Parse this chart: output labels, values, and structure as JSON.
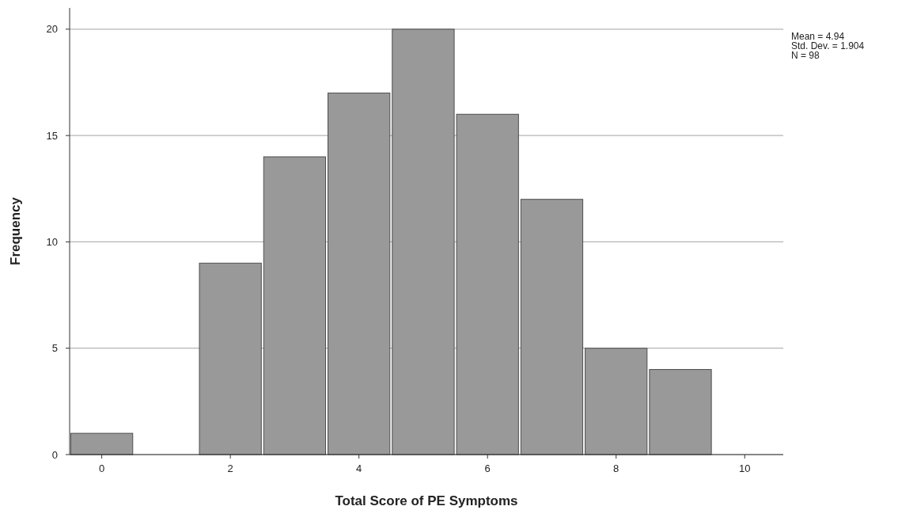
{
  "chart_data": {
    "type": "histogram",
    "xlabel": "Total Score of PE Symptoms",
    "ylabel": "Frequency",
    "bins": [
      -0.5,
      0.5,
      1.5,
      2.5,
      3.5,
      4.5,
      5.5,
      6.5,
      7.5,
      8.5,
      9.5
    ],
    "values": [
      1,
      0,
      9,
      14,
      17,
      20,
      16,
      12,
      5,
      4
    ],
    "color": "#999999",
    "xlim": [
      -0.5,
      10.6
    ],
    "xticks": [
      0,
      2,
      4,
      6,
      8,
      10
    ],
    "ylim": [
      0,
      21
    ],
    "yticks": [
      0,
      5,
      10,
      15,
      20
    ],
    "grid": "y",
    "annotations": [
      "Mean = 4.94",
      "Std. Dev. = 1.904",
      "N = 98"
    ]
  }
}
